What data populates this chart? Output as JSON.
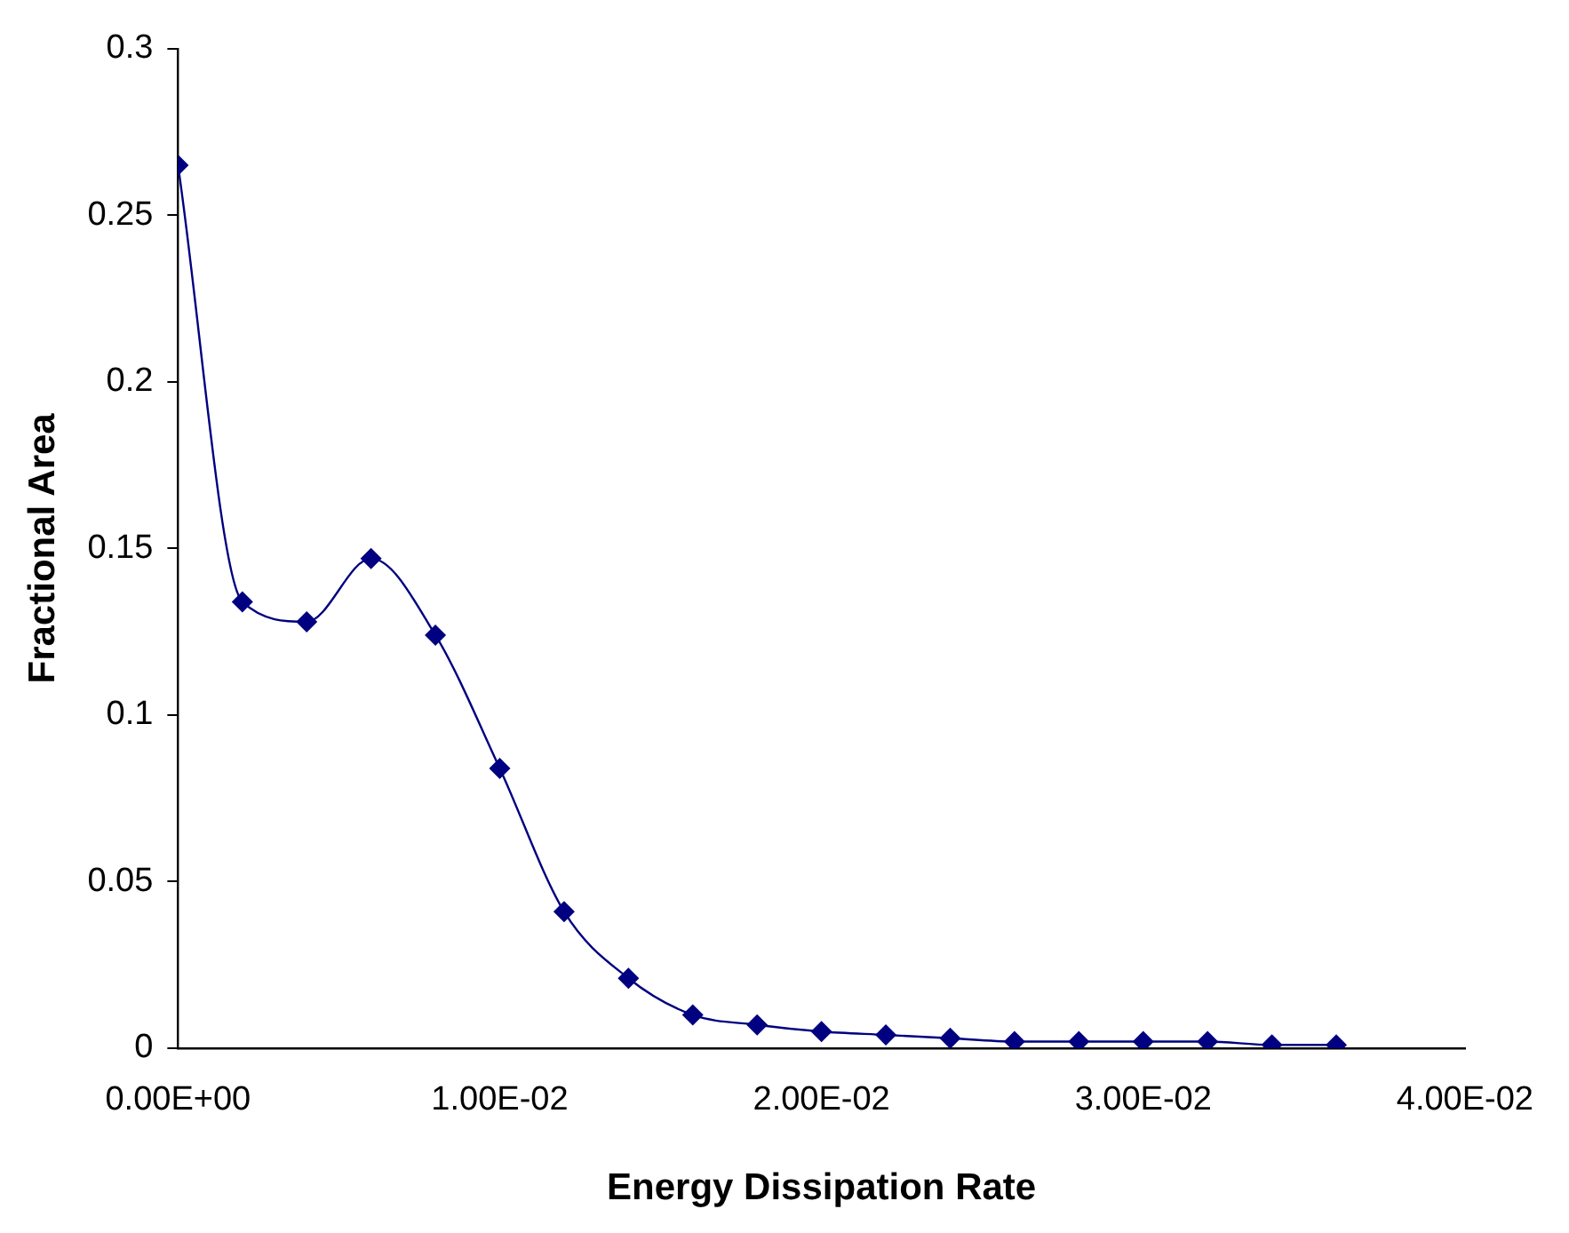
{
  "chart_data": {
    "type": "line",
    "xlabel": "Energy Dissipation Rate",
    "ylabel": "Fractional Area",
    "x": [
      0,
      0.002,
      0.004,
      0.006,
      0.008,
      0.01,
      0.012,
      0.014,
      0.016,
      0.018,
      0.02,
      0.022,
      0.024,
      0.026,
      0.028,
      0.03,
      0.032,
      0.034,
      0.036
    ],
    "series": [
      {
        "color": "#000080",
        "values": [
          0.265,
          0.134,
          0.128,
          0.147,
          0.124,
          0.084,
          0.041,
          0.021,
          0.01,
          0.007,
          0.005,
          0.004,
          0.003,
          0.002,
          0.002,
          0.002,
          0.002,
          0.001,
          0.001
        ]
      }
    ],
    "xlim": [
      0,
      0.04
    ],
    "xticks": [
      {
        "value": 0,
        "label": "0.00E+00"
      },
      {
        "value": 0.01,
        "label": "1.00E-02"
      },
      {
        "value": 0.02,
        "label": "2.00E-02"
      },
      {
        "value": 0.03,
        "label": "3.00E-02"
      },
      {
        "value": 0.04,
        "label": "4.00E-02"
      }
    ],
    "ylim": [
      0,
      0.3
    ],
    "yticks": [
      0,
      0.05,
      0.1,
      0.15,
      0.2,
      0.25,
      0.3
    ],
    "grid": false,
    "legend": false,
    "marker": "diamond",
    "line_style": "solid"
  }
}
